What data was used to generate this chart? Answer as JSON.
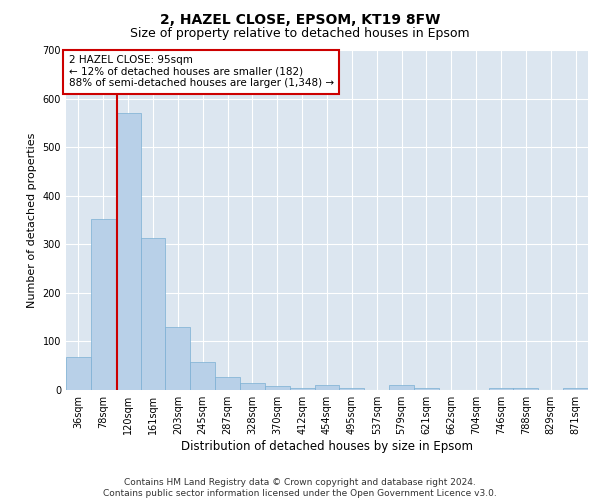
{
  "title": "2, HAZEL CLOSE, EPSOM, KT19 8FW",
  "subtitle": "Size of property relative to detached houses in Epsom",
  "xlabel": "Distribution of detached houses by size in Epsom",
  "ylabel": "Number of detached properties",
  "categories": [
    "36sqm",
    "78sqm",
    "120sqm",
    "161sqm",
    "203sqm",
    "245sqm",
    "287sqm",
    "328sqm",
    "370sqm",
    "412sqm",
    "454sqm",
    "495sqm",
    "537sqm",
    "579sqm",
    "621sqm",
    "662sqm",
    "704sqm",
    "746sqm",
    "788sqm",
    "829sqm",
    "871sqm"
  ],
  "values": [
    68,
    352,
    570,
    313,
    130,
    58,
    27,
    14,
    9,
    5,
    10,
    5,
    0,
    10,
    5,
    0,
    0,
    5,
    5,
    0,
    5
  ],
  "bar_color": "#b8d0e8",
  "bar_edge_color": "#7aafd4",
  "vline_x_index": 1.55,
  "vline_color": "#cc0000",
  "annotation_text": "2 HAZEL CLOSE: 95sqm\n← 12% of detached houses are smaller (182)\n88% of semi-detached houses are larger (1,348) →",
  "annotation_box_color": "#ffffff",
  "annotation_box_edge_color": "#cc0000",
  "ylim": [
    0,
    700
  ],
  "yticks": [
    0,
    100,
    200,
    300,
    400,
    500,
    600,
    700
  ],
  "background_color": "#dce6f0",
  "footer_text": "Contains HM Land Registry data © Crown copyright and database right 2024.\nContains public sector information licensed under the Open Government Licence v3.0.",
  "title_fontsize": 10,
  "subtitle_fontsize": 9,
  "xlabel_fontsize": 8.5,
  "ylabel_fontsize": 8,
  "tick_fontsize": 7,
  "annotation_fontsize": 7.5,
  "footer_fontsize": 6.5
}
